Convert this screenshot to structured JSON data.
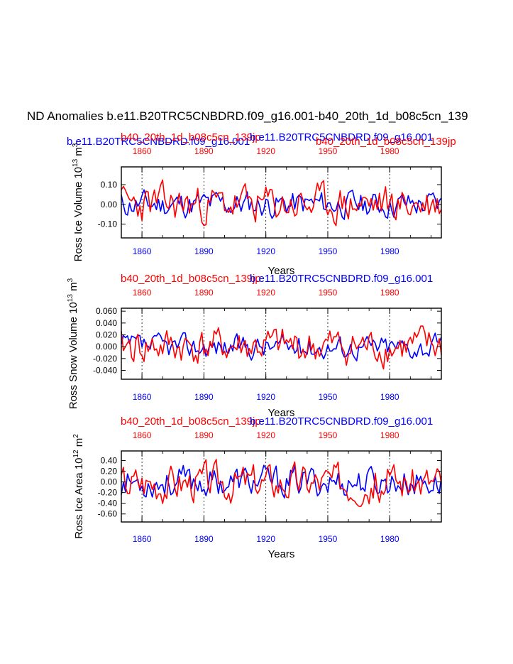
{
  "title": "ND Anomalies b.e11.B20TRC5CNBDRD.f09_g16.001-b40_20th_1d_b08c5cn_139",
  "colors": {
    "case1": "#0000ff",
    "case2": "#ff0000",
    "axis": "#000000"
  },
  "legend": {
    "case1": "b.e11.B20TRC5CNBDRD.f09_g16.001",
    "case2": "b40_20th_1d_b08c5cn_139jp"
  },
  "chart_data": [
    {
      "type": "line",
      "xlabel": "Years",
      "ylabel": "Ross Ice Volume 10^13 m^3",
      "ylabel_main": "Ross Ice Volume 10",
      "ylabel_exp": "13",
      "ylabel_unit": "m",
      "ylabel_unit_exp": "3",
      "xlim": [
        1850,
        2005
      ],
      "ylim": [
        -0.17,
        0.19
      ],
      "yticks": [
        0.1,
        0.0,
        -0.1
      ],
      "ytick_labels": [
        "0.10",
        "0.00",
        "-0.10"
      ],
      "xticks": [
        1860,
        1890,
        1920,
        1950,
        1980
      ],
      "xtick_labels_bottom": [
        "1860",
        "1890",
        "1920",
        "1950",
        "1980"
      ],
      "xtick_labels_top": [
        "1860",
        "1890",
        "1920",
        "1950",
        "1980"
      ],
      "vlines": [
        1860,
        1890,
        1920,
        1950,
        1980
      ],
      "series": [
        {
          "name": "b.e11.B20TRC5CNBDRD.f09_g16.001",
          "color": "#0000ff",
          "amp": 0.12,
          "seed": 11
        },
        {
          "name": "b40_20th_1d_b08c5cn_139jp",
          "color": "#ff0000",
          "amp": 0.17,
          "seed": 23
        }
      ]
    },
    {
      "type": "line",
      "xlabel": "Years",
      "ylabel": "Ross Snow Volume 10^13 m^3",
      "ylabel_main": "Ross Snow Volume 10",
      "ylabel_exp": "13",
      "ylabel_unit": "m",
      "ylabel_unit_exp": "3",
      "xlim": [
        1850,
        2005
      ],
      "ylim": [
        -0.055,
        0.065
      ],
      "yticks": [
        0.06,
        0.04,
        0.02,
        0.0,
        -0.02,
        -0.04
      ],
      "ytick_labels": [
        "0.060",
        "0.040",
        "0.020",
        "0.000",
        "-0.020",
        "-0.040"
      ],
      "xticks": [
        1860,
        1890,
        1920,
        1950,
        1980
      ],
      "xtick_labels_bottom": [
        "1860",
        "1890",
        "1920",
        "1950",
        "1980"
      ],
      "xtick_labels_top": [
        "1860",
        "1890",
        "1920",
        "1950",
        "1980"
      ],
      "vlines": [
        1860,
        1890,
        1920,
        1950,
        1980
      ],
      "series": [
        {
          "name": "b.e11.B20TRC5CNBDRD.f09_g16.001",
          "color": "#0000ff",
          "amp": 0.035,
          "seed": 37
        },
        {
          "name": "b40_20th_1d_b08c5cn_139jp",
          "color": "#ff0000",
          "amp": 0.055,
          "seed": 41
        }
      ]
    },
    {
      "type": "line",
      "xlabel": "Years",
      "ylabel": "Ross Ice Area 10^12 m^2",
      "ylabel_main": "Ross Ice Area 10",
      "ylabel_exp": "12",
      "ylabel_unit": "m",
      "ylabel_unit_exp": "2",
      "xlim": [
        1850,
        2005
      ],
      "ylim": [
        -0.75,
        0.58
      ],
      "yticks": [
        0.4,
        0.2,
        0.0,
        -0.2,
        -0.4,
        -0.6
      ],
      "ytick_labels": [
        "0.40",
        "0.20",
        "0.00",
        "-0.20",
        "-0.40",
        "-0.60"
      ],
      "xticks": [
        1860,
        1890,
        1920,
        1950,
        1980
      ],
      "xtick_labels_bottom": [
        "1860",
        "1890",
        "1920",
        "1950",
        "1980"
      ],
      "xtick_labels_top": [
        "1860",
        "1890",
        "1920",
        "1950",
        "1980"
      ],
      "vlines": [
        1860,
        1890,
        1920,
        1950,
        1980
      ],
      "series": [
        {
          "name": "b.e11.B20TRC5CNBDRD.f09_g16.001",
          "color": "#0000ff",
          "amp": 0.5,
          "seed": 53
        },
        {
          "name": "b40_20th_1d_b08c5cn_139jp",
          "color": "#ff0000",
          "amp": 0.62,
          "seed": 67
        }
      ]
    }
  ]
}
